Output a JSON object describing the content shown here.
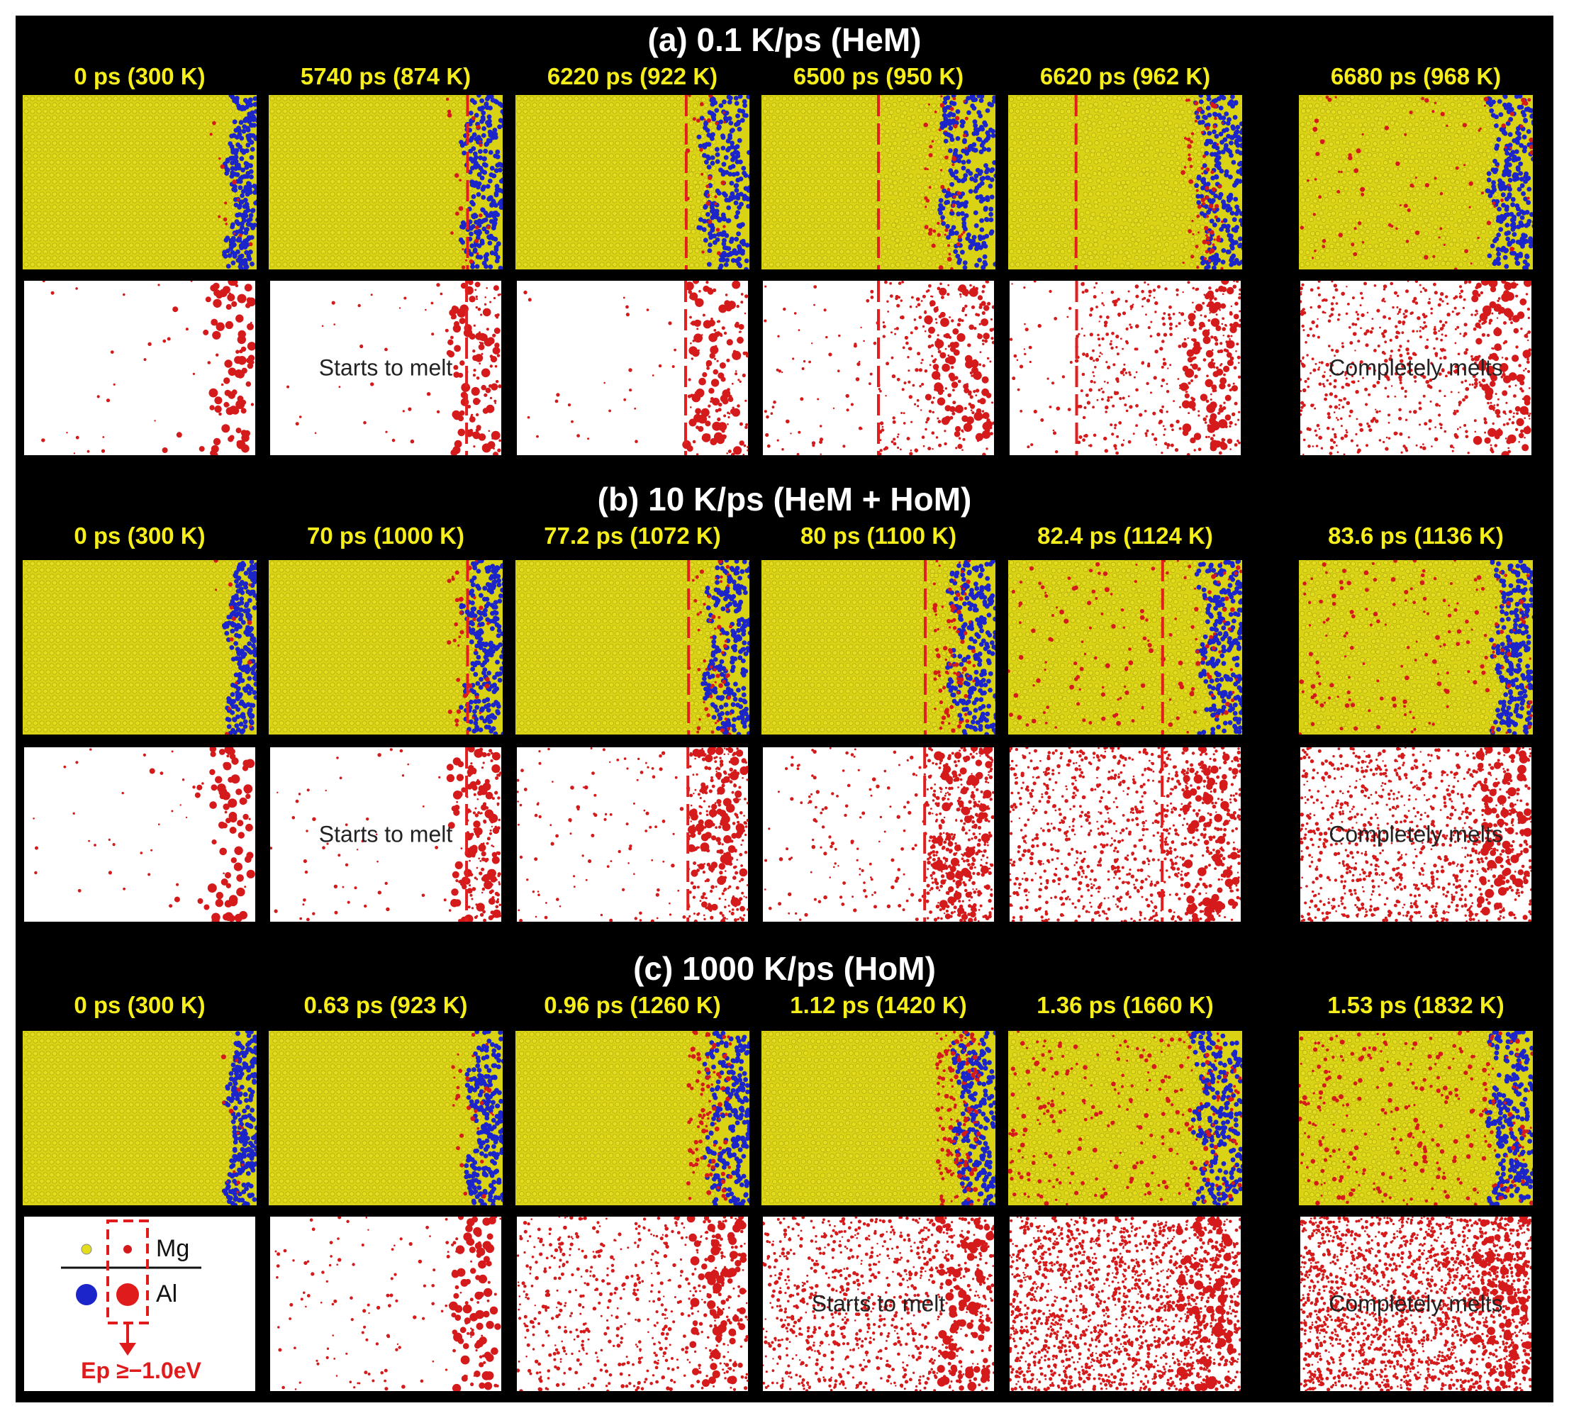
{
  "colors": {
    "background": "#000000",
    "title": "#ffffff",
    "column_label": "#f5ee1a",
    "mg_atom": "#e0da1c",
    "al_atom": "#1a24c8",
    "high_energy": "#d81818",
    "front_line": "#e31e1e"
  },
  "sections": [
    {
      "title": "(a)  0.1 K/ps  (HeM)",
      "columns": [
        {
          "label": "0 ps (300 K)",
          "note": "",
          "front": null,
          "blue_front": 0.92,
          "disorder": 0.0,
          "density": 0.02
        },
        {
          "label": "5740 ps (874 K)",
          "note": "Starts to melt",
          "front": 0.85,
          "blue_front": 0.88,
          "disorder": 0.05,
          "density": 0.05
        },
        {
          "label": "6220 ps (922 K)",
          "note": "",
          "front": 0.73,
          "blue_front": 0.84,
          "disorder": 0.1,
          "density": 0.07
        },
        {
          "label": "6500 ps (950 K)",
          "note": "",
          "front": 0.5,
          "blue_front": 0.82,
          "disorder": 0.3,
          "density": 0.18
        },
        {
          "label": "6620 ps  (962 K)",
          "note": "",
          "front": 0.29,
          "blue_front": 0.86,
          "disorder": 0.5,
          "density": 0.25
        },
        {
          "label": "6680 ps (968 K)",
          "note": "Completely melts",
          "front": null,
          "blue_front": 0.86,
          "disorder": 0.9,
          "density": 0.35
        }
      ]
    },
    {
      "title": "(b)  10 K/ps  (HeM + HoM)",
      "columns": [
        {
          "label": "0 ps (300 K)",
          "note": "",
          "front": null,
          "blue_front": 0.92,
          "disorder": 0.0,
          "density": 0.02
        },
        {
          "label": "70 ps (1000 K)",
          "note": "Starts to melt",
          "front": 0.85,
          "blue_front": 0.88,
          "disorder": 0.1,
          "density": 0.1
        },
        {
          "label": "77.2 ps (1072 K)",
          "note": "",
          "front": 0.74,
          "blue_front": 0.86,
          "disorder": 0.25,
          "density": 0.2
        },
        {
          "label": "80 ps (1100 K)",
          "note": "",
          "front": 0.7,
          "blue_front": 0.85,
          "disorder": 0.35,
          "density": 0.3
        },
        {
          "label": "82.4 ps (1124 K)",
          "note": "",
          "front": 0.66,
          "blue_front": 0.86,
          "disorder": 0.7,
          "density": 0.55
        },
        {
          "label": "83.6 ps (1136 K)",
          "note": "Completely melts",
          "front": null,
          "blue_front": 0.88,
          "disorder": 0.9,
          "density": 0.6
        }
      ]
    },
    {
      "title": "(c)  1000 K/ps  (HoM)",
      "columns": [
        {
          "label": "0 ps (300 K)",
          "note": "",
          "front": null,
          "blue_front": 0.92,
          "disorder": 0.0,
          "density": 0.02
        },
        {
          "label": "0.63 ps (923 K)",
          "note": "",
          "front": null,
          "blue_front": 0.9,
          "disorder": 0.08,
          "density": 0.08
        },
        {
          "label": "0.96 ps (1260 K)",
          "note": "",
          "front": null,
          "blue_front": 0.86,
          "disorder": 0.3,
          "density": 0.35
        },
        {
          "label": "1.12 ps (1420 K)",
          "note": "Starts to melt",
          "front": null,
          "blue_front": 0.87,
          "disorder": 0.5,
          "density": 0.55
        },
        {
          "label": "1.36 ps (1660 K)",
          "note": "",
          "front": null,
          "blue_front": 0.84,
          "disorder": 0.9,
          "density": 1.0
        },
        {
          "label": "1.53 ps (1832 K)",
          "note": "Completely melts",
          "front": null,
          "blue_front": 0.86,
          "disorder": 1.0,
          "density": 1.1
        }
      ]
    }
  ],
  "legend": {
    "mg_label": "Mg",
    "al_label": "Al",
    "energy_label": "Ep ≥−1.0eV"
  }
}
